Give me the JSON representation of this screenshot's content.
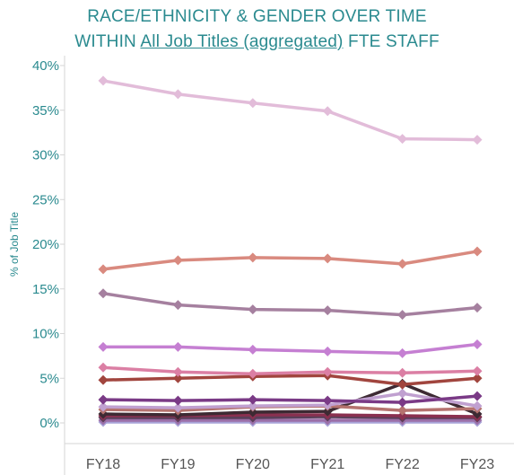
{
  "header": {
    "line1": "RACE/ETHNICITY & GENDER OVER TIME",
    "line2_prefix": "WITHIN",
    "line2_link": "All Job Titles (aggregated)",
    "line2_suffix": "FTE STAFF"
  },
  "chart_data": {
    "type": "line",
    "title": "RACE/ETHNICITY & GENDER OVER TIME WITHIN All Job Titles (aggregated) FTE STAFF",
    "xlabel": "",
    "ylabel": "% of Job Title",
    "ylim": [
      0,
      40
    ],
    "y_ticks": [
      "0%",
      "5%",
      "10%",
      "15%",
      "20%",
      "25%",
      "30%",
      "35%",
      "40%"
    ],
    "categories": [
      "FY18",
      "FY19",
      "FY20",
      "FY21",
      "FY22",
      "FY23"
    ],
    "grid": false,
    "legend": "none",
    "series": [
      {
        "color": "#e2bcd9",
        "values": [
          38.3,
          36.8,
          35.8,
          34.9,
          31.8,
          31.7
        ]
      },
      {
        "color": "#d98a7f",
        "values": [
          17.2,
          18.2,
          18.5,
          18.4,
          17.8,
          19.2
        ]
      },
      {
        "color": "#a5809f",
        "values": [
          14.5,
          13.2,
          12.7,
          12.6,
          12.1,
          12.9
        ]
      },
      {
        "color": "#c57fd2",
        "values": [
          8.5,
          8.5,
          8.2,
          8.0,
          7.8,
          8.8
        ]
      },
      {
        "color": "#db7fa4",
        "values": [
          6.2,
          5.7,
          5.5,
          5.7,
          5.6,
          5.8
        ]
      },
      {
        "color": "#a1453e",
        "values": [
          4.8,
          5.0,
          5.2,
          5.3,
          4.3,
          5.0
        ]
      },
      {
        "color": "#7a3a86",
        "values": [
          2.6,
          2.5,
          2.6,
          2.5,
          2.3,
          3.0
        ]
      },
      {
        "color": "#c0a0d0",
        "values": [
          1.8,
          1.7,
          1.9,
          2.0,
          3.3,
          1.9
        ]
      },
      {
        "color": "#b5736f",
        "values": [
          1.5,
          1.4,
          1.8,
          1.9,
          1.4,
          1.6
        ]
      },
      {
        "color": "#3d2a33",
        "values": [
          1.0,
          0.9,
          1.2,
          1.3,
          4.4,
          1.0
        ]
      },
      {
        "color": "#8a3050",
        "values": [
          0.8,
          0.8,
          0.9,
          0.9,
          0.8,
          0.7
        ]
      },
      {
        "color": "#5a3f5a",
        "values": [
          0.6,
          0.6,
          0.6,
          0.7,
          0.6,
          0.6
        ]
      },
      {
        "color": "#9b6fa8",
        "values": [
          0.3,
          0.3,
          0.3,
          0.3,
          0.3,
          0.3
        ]
      },
      {
        "color": "#a8a3d8",
        "values": [
          0.1,
          0.1,
          0.1,
          0.1,
          0.1,
          0.1
        ]
      }
    ]
  }
}
